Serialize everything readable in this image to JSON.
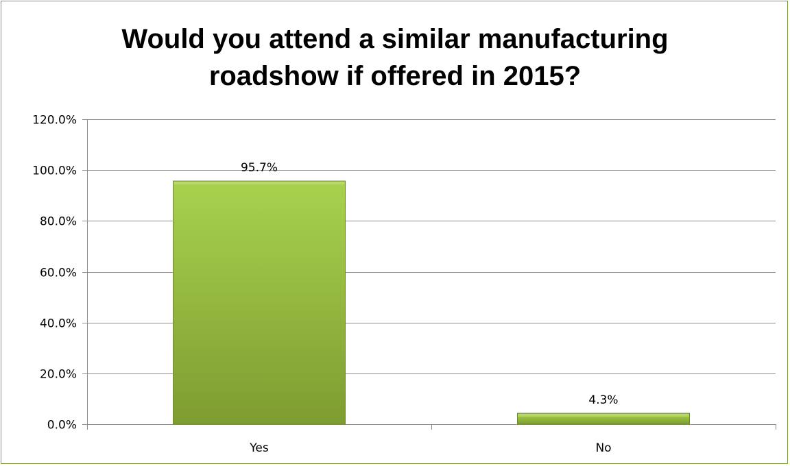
{
  "chart_data": {
    "type": "bar",
    "title_lines": [
      "Would you attend a similar manufacturing",
      "roadshow if offered in 2015?"
    ],
    "categories": [
      "Yes",
      "No"
    ],
    "values": [
      95.7,
      4.3
    ],
    "data_labels": [
      "95.7%",
      "4.3%"
    ],
    "ylim": [
      0,
      120
    ],
    "yticks": [
      0,
      20,
      40,
      60,
      80,
      100,
      120
    ],
    "ytick_labels": [
      "0.0%",
      "20.0%",
      "40.0%",
      "60.0%",
      "80.0%",
      "100.0%",
      "120.0%"
    ],
    "xlabel": "",
    "ylabel": "",
    "grid": true,
    "legend": "none",
    "bar_color": "#9bbb3b",
    "bar_gradient": [
      "#a8d24e",
      "#7e9c31"
    ],
    "frame_color": "#7f9a3c"
  }
}
